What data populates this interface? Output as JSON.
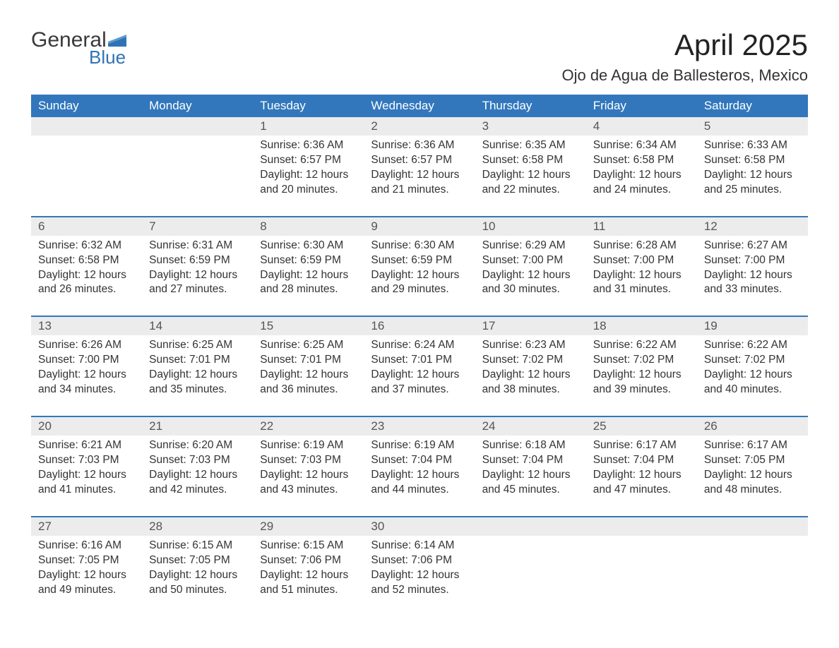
{
  "logo": {
    "general": "General",
    "blue": "Blue",
    "flag_color": "#2f73b5"
  },
  "header": {
    "month_title": "April 2025",
    "location": "Ojo de Agua de Ballesteros, Mexico"
  },
  "colors": {
    "header_bg": "#3277bc",
    "header_text": "#ffffff",
    "daynum_bg": "#ececec",
    "row_border": "#3277bc",
    "body_text": "#333333",
    "background": "#ffffff"
  },
  "calendar": {
    "day_headers": [
      "Sunday",
      "Monday",
      "Tuesday",
      "Wednesday",
      "Thursday",
      "Friday",
      "Saturday"
    ],
    "weeks": [
      [
        null,
        null,
        {
          "n": "1",
          "sr": "6:36 AM",
          "ss": "6:57 PM",
          "dl": "12 hours and 20 minutes."
        },
        {
          "n": "2",
          "sr": "6:36 AM",
          "ss": "6:57 PM",
          "dl": "12 hours and 21 minutes."
        },
        {
          "n": "3",
          "sr": "6:35 AM",
          "ss": "6:58 PM",
          "dl": "12 hours and 22 minutes."
        },
        {
          "n": "4",
          "sr": "6:34 AM",
          "ss": "6:58 PM",
          "dl": "12 hours and 24 minutes."
        },
        {
          "n": "5",
          "sr": "6:33 AM",
          "ss": "6:58 PM",
          "dl": "12 hours and 25 minutes."
        }
      ],
      [
        {
          "n": "6",
          "sr": "6:32 AM",
          "ss": "6:58 PM",
          "dl": "12 hours and 26 minutes."
        },
        {
          "n": "7",
          "sr": "6:31 AM",
          "ss": "6:59 PM",
          "dl": "12 hours and 27 minutes."
        },
        {
          "n": "8",
          "sr": "6:30 AM",
          "ss": "6:59 PM",
          "dl": "12 hours and 28 minutes."
        },
        {
          "n": "9",
          "sr": "6:30 AM",
          "ss": "6:59 PM",
          "dl": "12 hours and 29 minutes."
        },
        {
          "n": "10",
          "sr": "6:29 AM",
          "ss": "7:00 PM",
          "dl": "12 hours and 30 minutes."
        },
        {
          "n": "11",
          "sr": "6:28 AM",
          "ss": "7:00 PM",
          "dl": "12 hours and 31 minutes."
        },
        {
          "n": "12",
          "sr": "6:27 AM",
          "ss": "7:00 PM",
          "dl": "12 hours and 33 minutes."
        }
      ],
      [
        {
          "n": "13",
          "sr": "6:26 AM",
          "ss": "7:00 PM",
          "dl": "12 hours and 34 minutes."
        },
        {
          "n": "14",
          "sr": "6:25 AM",
          "ss": "7:01 PM",
          "dl": "12 hours and 35 minutes."
        },
        {
          "n": "15",
          "sr": "6:25 AM",
          "ss": "7:01 PM",
          "dl": "12 hours and 36 minutes."
        },
        {
          "n": "16",
          "sr": "6:24 AM",
          "ss": "7:01 PM",
          "dl": "12 hours and 37 minutes."
        },
        {
          "n": "17",
          "sr": "6:23 AM",
          "ss": "7:02 PM",
          "dl": "12 hours and 38 minutes."
        },
        {
          "n": "18",
          "sr": "6:22 AM",
          "ss": "7:02 PM",
          "dl": "12 hours and 39 minutes."
        },
        {
          "n": "19",
          "sr": "6:22 AM",
          "ss": "7:02 PM",
          "dl": "12 hours and 40 minutes."
        }
      ],
      [
        {
          "n": "20",
          "sr": "6:21 AM",
          "ss": "7:03 PM",
          "dl": "12 hours and 41 minutes."
        },
        {
          "n": "21",
          "sr": "6:20 AM",
          "ss": "7:03 PM",
          "dl": "12 hours and 42 minutes."
        },
        {
          "n": "22",
          "sr": "6:19 AM",
          "ss": "7:03 PM",
          "dl": "12 hours and 43 minutes."
        },
        {
          "n": "23",
          "sr": "6:19 AM",
          "ss": "7:04 PM",
          "dl": "12 hours and 44 minutes."
        },
        {
          "n": "24",
          "sr": "6:18 AM",
          "ss": "7:04 PM",
          "dl": "12 hours and 45 minutes."
        },
        {
          "n": "25",
          "sr": "6:17 AM",
          "ss": "7:04 PM",
          "dl": "12 hours and 47 minutes."
        },
        {
          "n": "26",
          "sr": "6:17 AM",
          "ss": "7:05 PM",
          "dl": "12 hours and 48 minutes."
        }
      ],
      [
        {
          "n": "27",
          "sr": "6:16 AM",
          "ss": "7:05 PM",
          "dl": "12 hours and 49 minutes."
        },
        {
          "n": "28",
          "sr": "6:15 AM",
          "ss": "7:05 PM",
          "dl": "12 hours and 50 minutes."
        },
        {
          "n": "29",
          "sr": "6:15 AM",
          "ss": "7:06 PM",
          "dl": "12 hours and 51 minutes."
        },
        {
          "n": "30",
          "sr": "6:14 AM",
          "ss": "7:06 PM",
          "dl": "12 hours and 52 minutes."
        },
        null,
        null,
        null
      ]
    ],
    "labels": {
      "sunrise": "Sunrise: ",
      "sunset": "Sunset: ",
      "daylight": "Daylight: "
    }
  }
}
